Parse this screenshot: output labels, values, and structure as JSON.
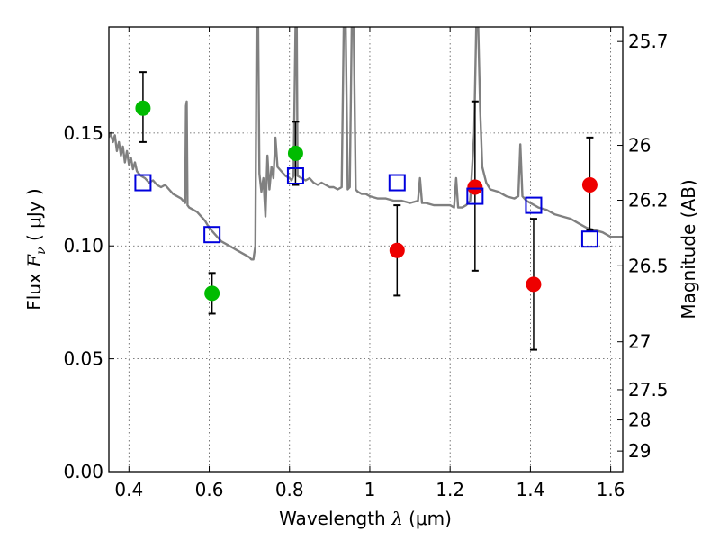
{
  "chart_data": {
    "type": "scatter",
    "title": "",
    "xlabel": "Wavelength  λ (μm)",
    "ylabel": "Flux  Fν ( μJy )",
    "ylabel_parts": {
      "prefix": "Flux  ",
      "symbol": "F",
      "subscript": "ν",
      "suffix": "  ( μJy )"
    },
    "xlabel_parts": {
      "prefix": "Wavelength  ",
      "symbol": "λ",
      "suffix": " (μm)"
    },
    "y2label": "Magnitude (AB)",
    "xlim": [
      0.35,
      1.63
    ],
    "ylim": [
      0.0,
      0.197
    ],
    "grid": true,
    "x_ticks": [
      {
        "value": 0.4,
        "label": "0.4"
      },
      {
        "value": 0.6,
        "label": "0.6"
      },
      {
        "value": 0.8,
        "label": "0.8"
      },
      {
        "value": 1.0,
        "label": "1"
      },
      {
        "value": 1.2,
        "label": "1.2"
      },
      {
        "value": 1.4,
        "label": "1.4"
      },
      {
        "value": 1.6,
        "label": "1.6"
      }
    ],
    "y_ticks": [
      {
        "value": 0.0,
        "label": "0.00"
      },
      {
        "value": 0.05,
        "label": "0.05"
      },
      {
        "value": 0.1,
        "label": "0.10"
      },
      {
        "value": 0.15,
        "label": "0.15"
      }
    ],
    "y2_ticks": [
      {
        "value": 25.7,
        "label": "25.7"
      },
      {
        "value": 26.0,
        "label": "26"
      },
      {
        "value": 26.2,
        "label": "26.2"
      },
      {
        "value": 26.5,
        "label": "26.5"
      },
      {
        "value": 27.0,
        "label": "27"
      },
      {
        "value": 27.5,
        "label": "27.5"
      },
      {
        "value": 28.0,
        "label": "28"
      },
      {
        "value": 29.0,
        "label": "29"
      }
    ],
    "series": [
      {
        "kind": "line",
        "color": "#808080",
        "points": [
          [
            0.35,
            0.148
          ],
          [
            0.355,
            0.15
          ],
          [
            0.36,
            0.146
          ],
          [
            0.365,
            0.149
          ],
          [
            0.37,
            0.142
          ],
          [
            0.375,
            0.146
          ],
          [
            0.38,
            0.14
          ],
          [
            0.385,
            0.144
          ],
          [
            0.39,
            0.137
          ],
          [
            0.395,
            0.142
          ],
          [
            0.4,
            0.136
          ],
          [
            0.405,
            0.139
          ],
          [
            0.41,
            0.134
          ],
          [
            0.415,
            0.137
          ],
          [
            0.42,
            0.133
          ],
          [
            0.43,
            0.131
          ],
          [
            0.44,
            0.13
          ],
          [
            0.45,
            0.128
          ],
          [
            0.46,
            0.129
          ],
          [
            0.47,
            0.127
          ],
          [
            0.48,
            0.126
          ],
          [
            0.49,
            0.127
          ],
          [
            0.5,
            0.125
          ],
          [
            0.51,
            0.123
          ],
          [
            0.52,
            0.122
          ],
          [
            0.53,
            0.121
          ],
          [
            0.535,
            0.12
          ],
          [
            0.54,
            0.119
          ],
          [
            0.542,
            0.162
          ],
          [
            0.544,
            0.164
          ],
          [
            0.546,
            0.118
          ],
          [
            0.55,
            0.117
          ],
          [
            0.56,
            0.116
          ],
          [
            0.57,
            0.115
          ],
          [
            0.58,
            0.113
          ],
          [
            0.59,
            0.111
          ],
          [
            0.6,
            0.108
          ],
          [
            0.61,
            0.106
          ],
          [
            0.62,
            0.104
          ],
          [
            0.63,
            0.102
          ],
          [
            0.64,
            0.101
          ],
          [
            0.65,
            0.1
          ],
          [
            0.66,
            0.099
          ],
          [
            0.67,
            0.098
          ],
          [
            0.68,
            0.097
          ],
          [
            0.69,
            0.096
          ],
          [
            0.7,
            0.095
          ],
          [
            0.705,
            0.094
          ],
          [
            0.71,
            0.094
          ],
          [
            0.715,
            0.1
          ],
          [
            0.718,
            0.197
          ],
          [
            0.722,
            0.197
          ],
          [
            0.725,
            0.132
          ],
          [
            0.73,
            0.124
          ],
          [
            0.735,
            0.13
          ],
          [
            0.74,
            0.113
          ],
          [
            0.745,
            0.14
          ],
          [
            0.75,
            0.125
          ],
          [
            0.755,
            0.135
          ],
          [
            0.76,
            0.13
          ],
          [
            0.765,
            0.148
          ],
          [
            0.77,
            0.135
          ],
          [
            0.78,
            0.133
          ],
          [
            0.79,
            0.131
          ],
          [
            0.8,
            0.13
          ],
          [
            0.805,
            0.129
          ],
          [
            0.81,
            0.131
          ],
          [
            0.815,
            0.197
          ],
          [
            0.818,
            0.197
          ],
          [
            0.82,
            0.131
          ],
          [
            0.83,
            0.13
          ],
          [
            0.84,
            0.129
          ],
          [
            0.85,
            0.13
          ],
          [
            0.86,
            0.128
          ],
          [
            0.87,
            0.127
          ],
          [
            0.88,
            0.128
          ],
          [
            0.89,
            0.127
          ],
          [
            0.9,
            0.126
          ],
          [
            0.91,
            0.126
          ],
          [
            0.92,
            0.125
          ],
          [
            0.93,
            0.126
          ],
          [
            0.935,
            0.197
          ],
          [
            0.94,
            0.197
          ],
          [
            0.945,
            0.125
          ],
          [
            0.95,
            0.126
          ],
          [
            0.955,
            0.197
          ],
          [
            0.96,
            0.197
          ],
          [
            0.965,
            0.125
          ],
          [
            0.97,
            0.124
          ],
          [
            0.98,
            0.123
          ],
          [
            0.99,
            0.123
          ],
          [
            1.0,
            0.122
          ],
          [
            1.02,
            0.121
          ],
          [
            1.04,
            0.121
          ],
          [
            1.06,
            0.12
          ],
          [
            1.08,
            0.12
          ],
          [
            1.1,
            0.119
          ],
          [
            1.12,
            0.12
          ],
          [
            1.125,
            0.13
          ],
          [
            1.13,
            0.119
          ],
          [
            1.14,
            0.119
          ],
          [
            1.16,
            0.118
          ],
          [
            1.18,
            0.118
          ],
          [
            1.2,
            0.118
          ],
          [
            1.21,
            0.117
          ],
          [
            1.215,
            0.13
          ],
          [
            1.22,
            0.117
          ],
          [
            1.23,
            0.117
          ],
          [
            1.24,
            0.118
          ],
          [
            1.25,
            0.12
          ],
          [
            1.26,
            0.15
          ],
          [
            1.265,
            0.197
          ],
          [
            1.27,
            0.197
          ],
          [
            1.275,
            0.16
          ],
          [
            1.28,
            0.135
          ],
          [
            1.29,
            0.128
          ],
          [
            1.3,
            0.125
          ],
          [
            1.32,
            0.124
          ],
          [
            1.34,
            0.122
          ],
          [
            1.36,
            0.121
          ],
          [
            1.37,
            0.122
          ],
          [
            1.375,
            0.145
          ],
          [
            1.38,
            0.122
          ],
          [
            1.39,
            0.12
          ],
          [
            1.4,
            0.119
          ],
          [
            1.42,
            0.117
          ],
          [
            1.44,
            0.116
          ],
          [
            1.46,
            0.114
          ],
          [
            1.48,
            0.113
          ],
          [
            1.5,
            0.112
          ],
          [
            1.52,
            0.11
          ],
          [
            1.54,
            0.108
          ],
          [
            1.56,
            0.107
          ],
          [
            1.58,
            0.106
          ],
          [
            1.6,
            0.104
          ],
          [
            1.63,
            0.104
          ]
        ]
      },
      {
        "kind": "points",
        "marker": "circle",
        "color": "#00bb00",
        "points": [
          {
            "x": 0.435,
            "y": 0.161,
            "err_low": 0.146,
            "err_high": 0.177
          },
          {
            "x": 0.607,
            "y": 0.079,
            "err_low": 0.07,
            "err_high": 0.088
          },
          {
            "x": 0.815,
            "y": 0.141,
            "err_low": 0.127,
            "err_high": 0.155
          }
        ]
      },
      {
        "kind": "points",
        "marker": "circle",
        "color": "#ee0000",
        "points": [
          {
            "x": 1.068,
            "y": 0.098,
            "err_low": 0.078,
            "err_high": 0.118
          },
          {
            "x": 1.262,
            "y": 0.126,
            "err_low": 0.089,
            "err_high": 0.164
          },
          {
            "x": 1.408,
            "y": 0.083,
            "err_low": 0.054,
            "err_high": 0.112
          },
          {
            "x": 1.548,
            "y": 0.127,
            "err_low": 0.107,
            "err_high": 0.148
          }
        ]
      },
      {
        "kind": "points",
        "marker": "open-square",
        "color": "#0000dd",
        "points": [
          {
            "x": 0.435,
            "y": 0.128
          },
          {
            "x": 0.607,
            "y": 0.105
          },
          {
            "x": 0.815,
            "y": 0.131
          },
          {
            "x": 1.068,
            "y": 0.128
          },
          {
            "x": 1.262,
            "y": 0.122
          },
          {
            "x": 1.408,
            "y": 0.118
          },
          {
            "x": 1.548,
            "y": 0.103
          }
        ]
      }
    ]
  }
}
